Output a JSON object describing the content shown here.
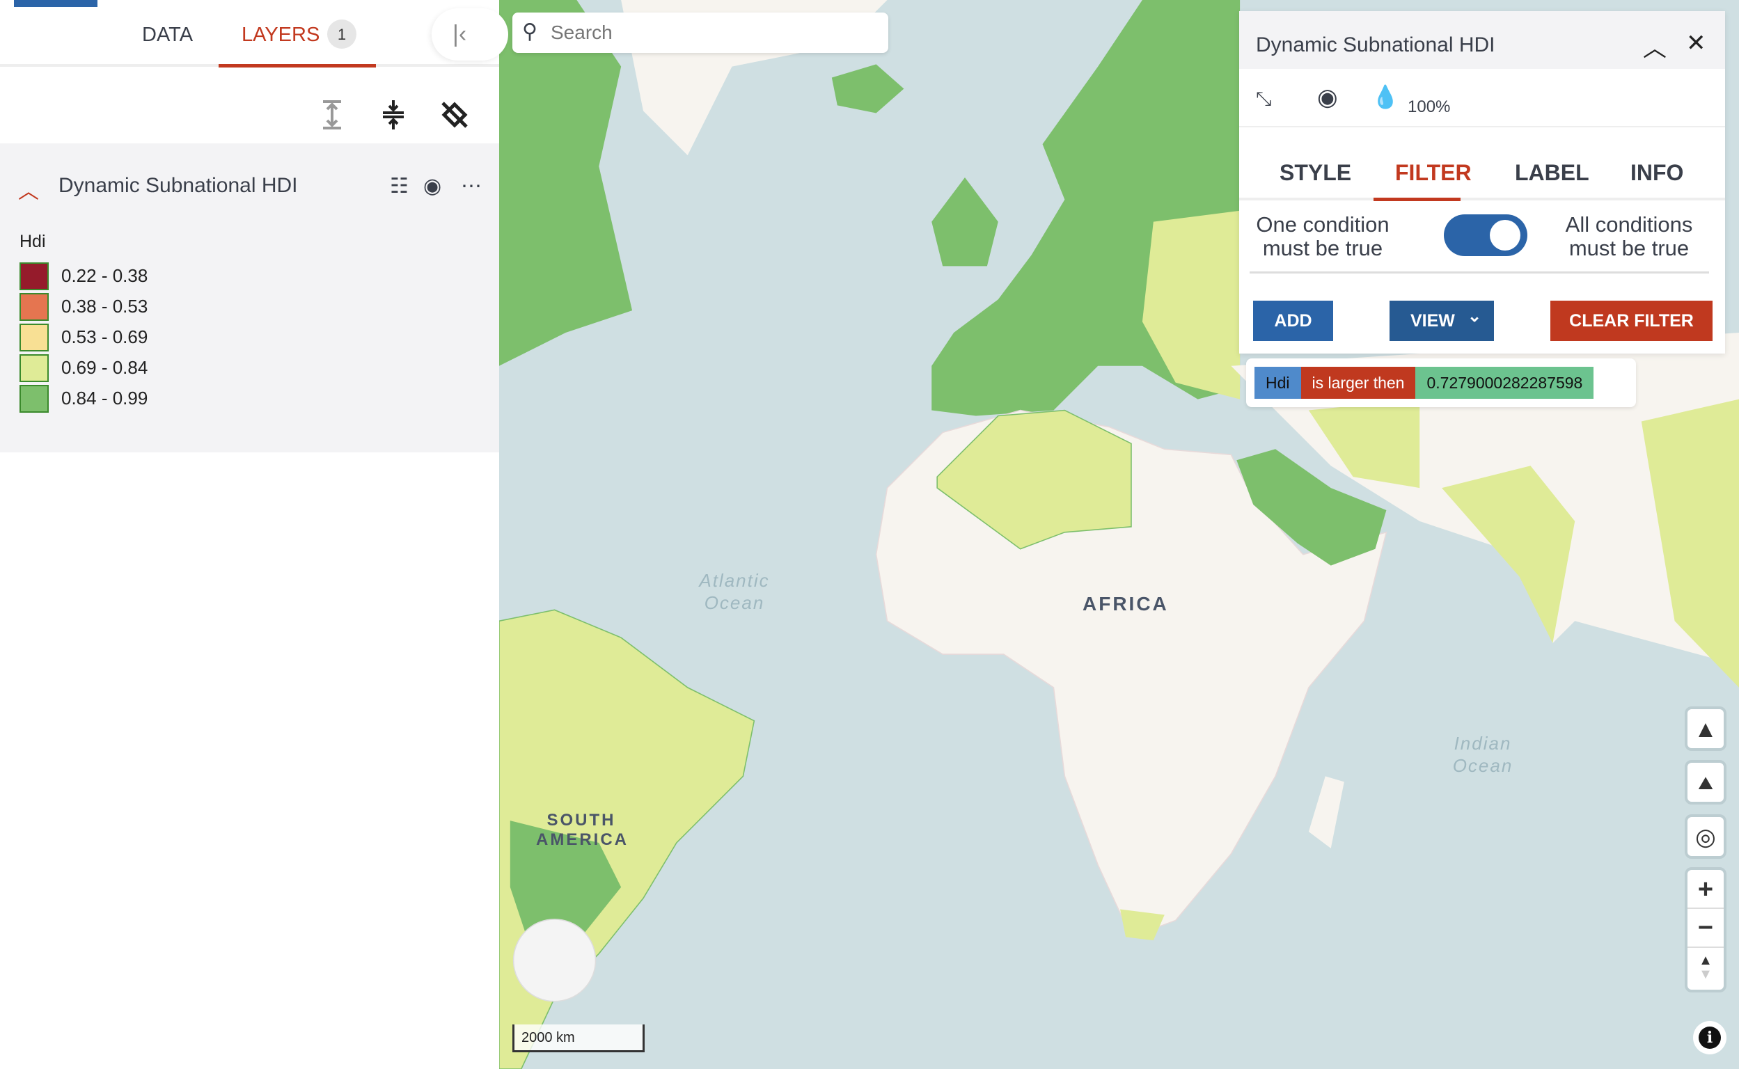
{
  "sidebar": {
    "tabs": [
      {
        "label": "DATA"
      },
      {
        "label": "LAYERS",
        "count": "1"
      }
    ],
    "layer": {
      "title": "Dynamic Subnational HDI",
      "legend": {
        "title": "Hdi",
        "items": [
          {
            "label": "0.22 - 0.38",
            "color": "#951b2b"
          },
          {
            "label": "0.38 - 0.53",
            "color": "#e57550"
          },
          {
            "label": "0.53 - 0.69",
            "color": "#f8e094"
          },
          {
            "label": "0.69 - 0.84",
            "color": "#dfeb97"
          },
          {
            "label": "0.84 - 0.99",
            "color": "#7dbf6c"
          }
        ]
      }
    }
  },
  "search": {
    "placeholder": "Search"
  },
  "panel": {
    "title": "Dynamic Subnational HDI",
    "opacity": "100%",
    "tabs": [
      "STYLE",
      "FILTER",
      "LABEL",
      "INFO"
    ],
    "active_tab": "FILTER",
    "cond_one": "One condition must be true",
    "cond_all": "All conditions must be true",
    "toggle_all": true,
    "add": "ADD",
    "view": "VIEW",
    "clear": "CLEAR FILTER",
    "filter": {
      "field": "Hdi",
      "op": "is larger then",
      "value": "0.7279000282287598"
    }
  },
  "map": {
    "labels": {
      "atlantic": "Atlantic Ocean",
      "africa": "AFRICA",
      "indian": "Indian Ocean",
      "south_america": "SOUTH AMERICA"
    },
    "scale": "2000 km"
  },
  "colors": {
    "accent": "#c2391f",
    "primary": "#2b64a8",
    "ocean": "#cfdfe2",
    "land": "#f7f4ef"
  }
}
